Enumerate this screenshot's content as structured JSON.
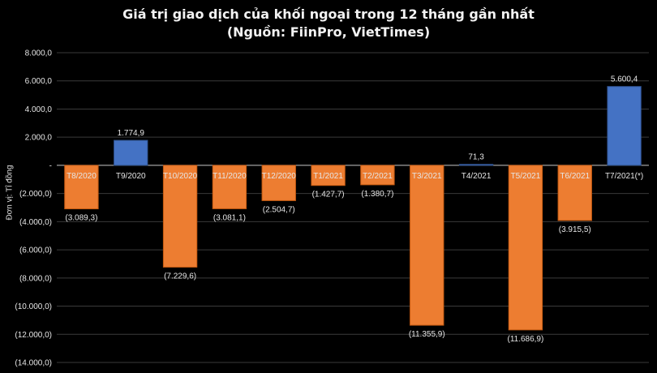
{
  "chart_data": {
    "type": "bar",
    "title": "Giá trị giao dịch của khối ngoại trong 12 tháng gần nhất",
    "subtitle": "(Nguồn: FiinPro, VietTimes)",
    "ylabel": "Đơn vị: Tỉ đồng",
    "xlabel": "",
    "categories": [
      "T8/2020",
      "T9/2020",
      "T10/2020",
      "T11/2020",
      "T12/2020",
      "T1/2021",
      "T2/2021",
      "T3/2021",
      "T4/2021",
      "T5/2021",
      "T6/2021",
      "T7/2021(*)"
    ],
    "values": [
      -3089.3,
      1774.9,
      -7229.6,
      -3081.1,
      -2504.7,
      -1427.7,
      -1380.7,
      -11355.9,
      71.3,
      -11686.9,
      -3915.5,
      5600.4
    ],
    "value_labels": [
      "(3.089,3)",
      "1.774,9",
      "(7.229,6)",
      "(3.081,1)",
      "(2.504,7)",
      "(1.427,7)",
      "(1.380,7)",
      "(11.355,9)",
      "71,3",
      "(11.686,9)",
      "(3.915,5)",
      "5.600,4"
    ],
    "ylim": [
      -14000,
      8000
    ],
    "yticks": [
      8000,
      6000,
      4000,
      2000,
      0,
      -2000,
      -4000,
      -6000,
      -8000,
      -10000,
      -12000,
      -14000
    ],
    "ytick_labels": [
      "8.000,0",
      "6.000,0",
      "4.000,0",
      "2.000,0",
      "-",
      "(2.000,0)",
      "(4.000,0)",
      "(6.000,0)",
      "(8.000,0)",
      "(10.000,0)",
      "(12.000,0)",
      "(14.000,0)"
    ],
    "grid": true,
    "legend": "none",
    "colors": {
      "positive": "#4472C4",
      "negative": "#ED7D31",
      "background": "#000000",
      "grid": "#3a3a3a",
      "text": "#e6e6e6"
    }
  }
}
